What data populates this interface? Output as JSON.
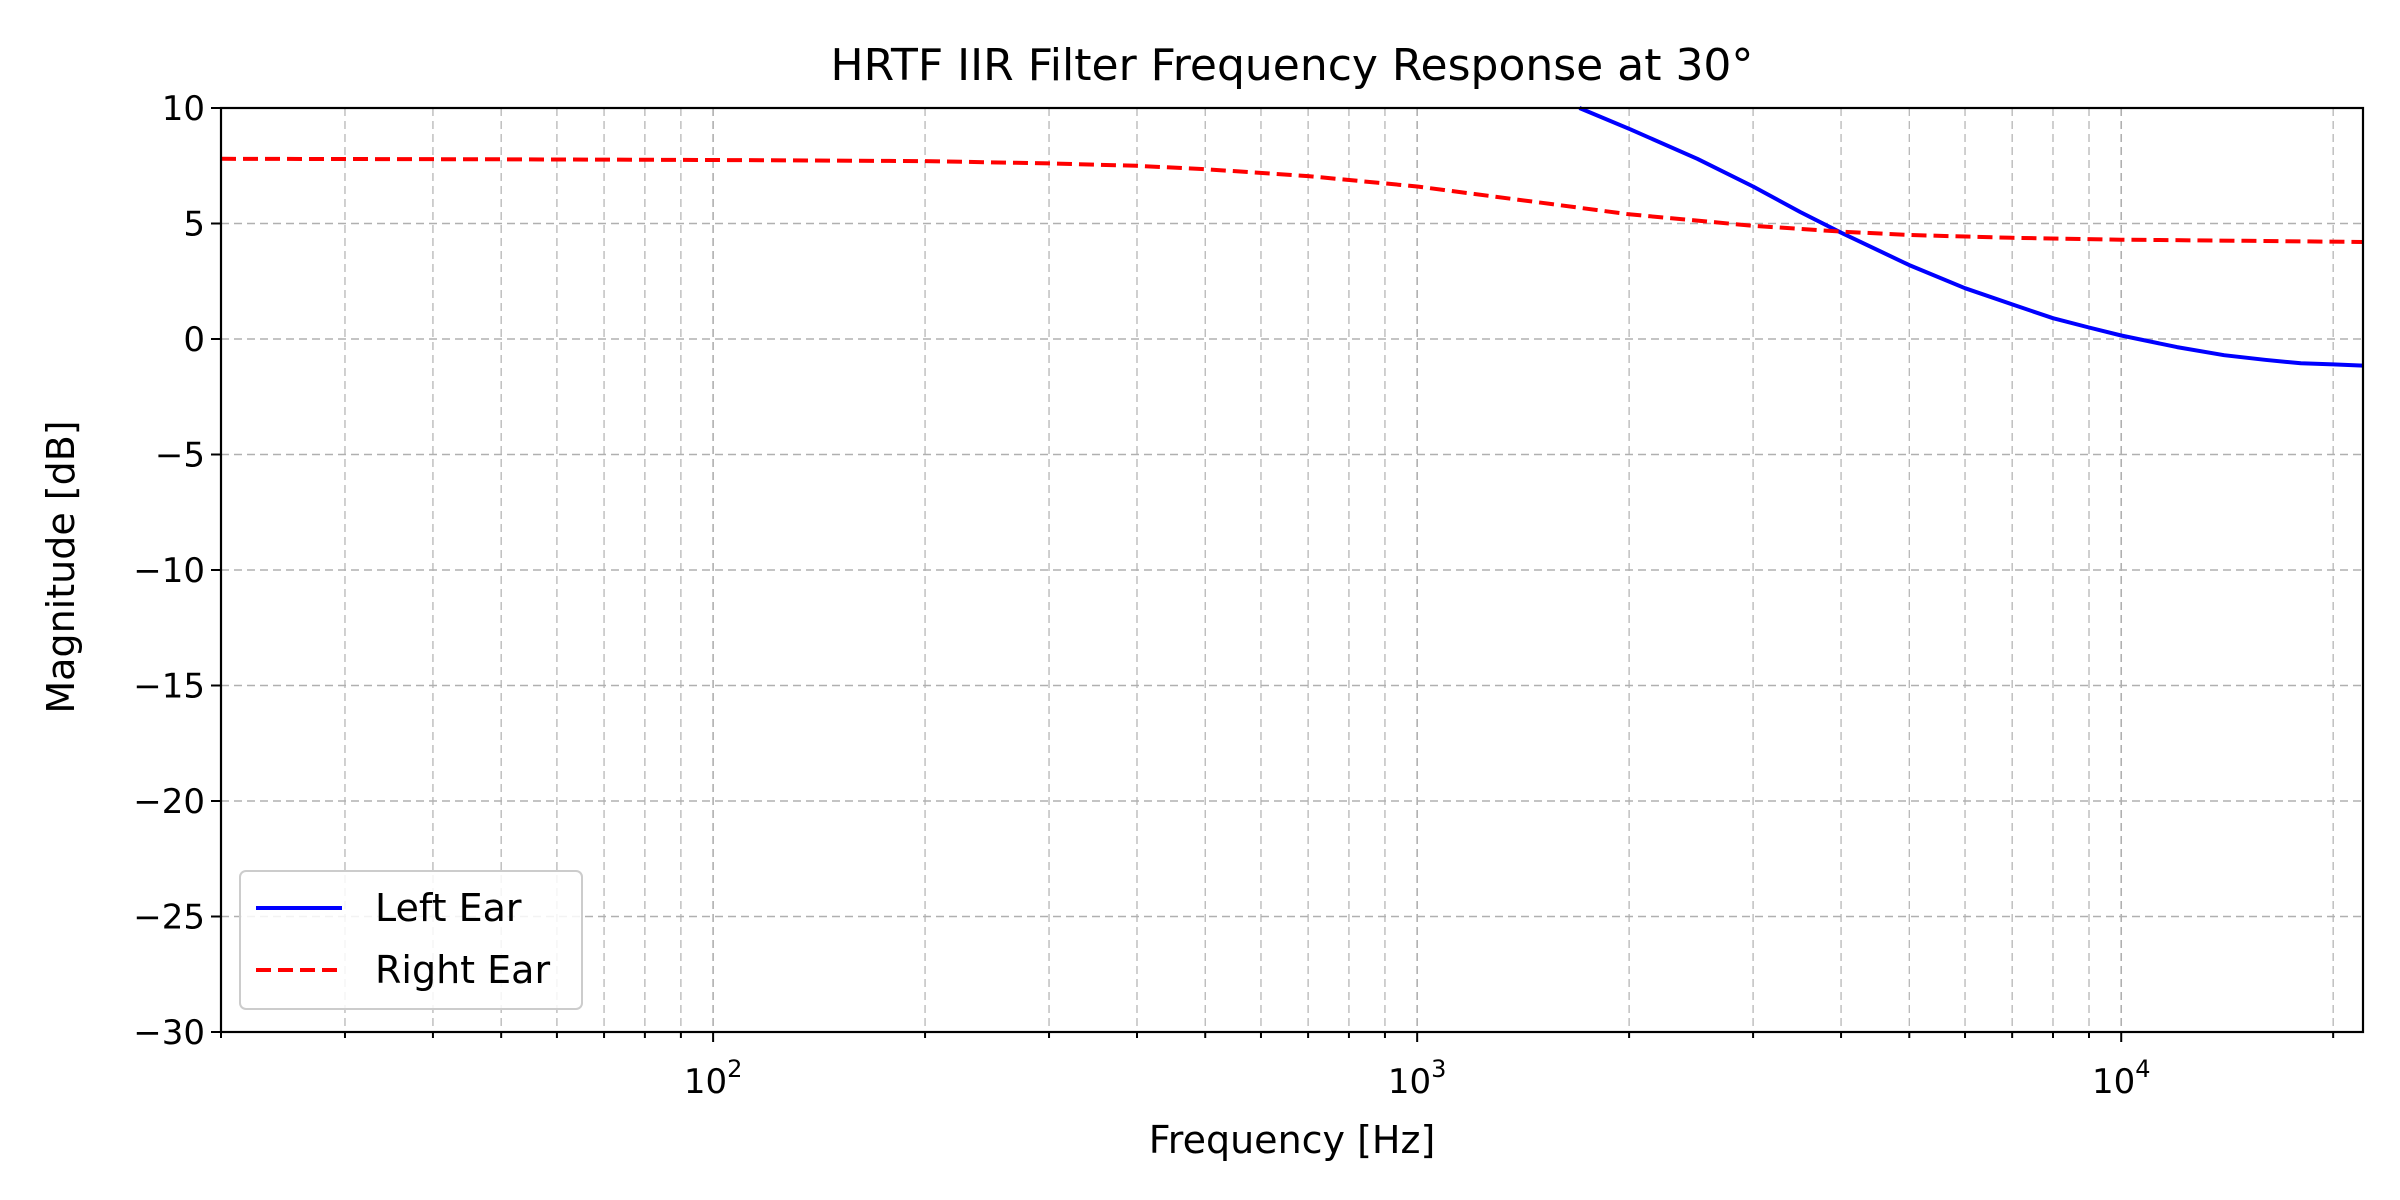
{
  "chart_data": {
    "type": "line",
    "title": "HRTF IIR Filter Frequency Response at 30°",
    "xlabel": "Frequency [Hz]",
    "ylabel": "Magnitude [dB]",
    "xscale": "log",
    "xlim": [
      20,
      22050
    ],
    "ylim": [
      -30,
      10
    ],
    "grid": true,
    "legend_position": "lower-left",
    "x_ticks": [
      {
        "value": 100,
        "base": "10",
        "exp": "2"
      },
      {
        "value": 1000,
        "base": "10",
        "exp": "3"
      },
      {
        "value": 10000,
        "base": "10",
        "exp": "4"
      }
    ],
    "y_ticks": [
      {
        "value": 10,
        "label": "10"
      },
      {
        "value": 5,
        "label": "5"
      },
      {
        "value": 0,
        "label": "0"
      },
      {
        "value": -5,
        "label": "−5"
      },
      {
        "value": -10,
        "label": "−10"
      },
      {
        "value": -15,
        "label": "−15"
      },
      {
        "value": -20,
        "label": "−20"
      },
      {
        "value": -25,
        "label": "−25"
      },
      {
        "value": -30,
        "label": "−30"
      }
    ],
    "series": [
      {
        "name": "Left Ear",
        "color": "#0000ff",
        "style": "solid",
        "x": [
          1700,
          2000,
          2500,
          3000,
          3500,
          4000,
          5000,
          6000,
          7000,
          8000,
          9000,
          10000,
          12000,
          14000,
          16000,
          18000,
          20000,
          22050
        ],
        "y": [
          10,
          9.1,
          7.8,
          6.6,
          5.5,
          4.6,
          3.2,
          2.2,
          1.5,
          0.9,
          0.5,
          0.15,
          -0.35,
          -0.7,
          -0.9,
          -1.05,
          -1.1,
          -1.15
        ]
      },
      {
        "name": "Right Ear",
        "color": "#ff0000",
        "style": "dashed",
        "x": [
          20,
          50,
          100,
          200,
          300,
          400,
          500,
          700,
          1000,
          1500,
          2000,
          3000,
          4000,
          5000,
          7000,
          10000,
          15000,
          22050
        ],
        "y": [
          7.8,
          7.78,
          7.75,
          7.7,
          7.6,
          7.5,
          7.35,
          7.05,
          6.6,
          5.9,
          5.4,
          4.9,
          4.65,
          4.5,
          4.38,
          4.3,
          4.25,
          4.2
        ]
      }
    ]
  }
}
